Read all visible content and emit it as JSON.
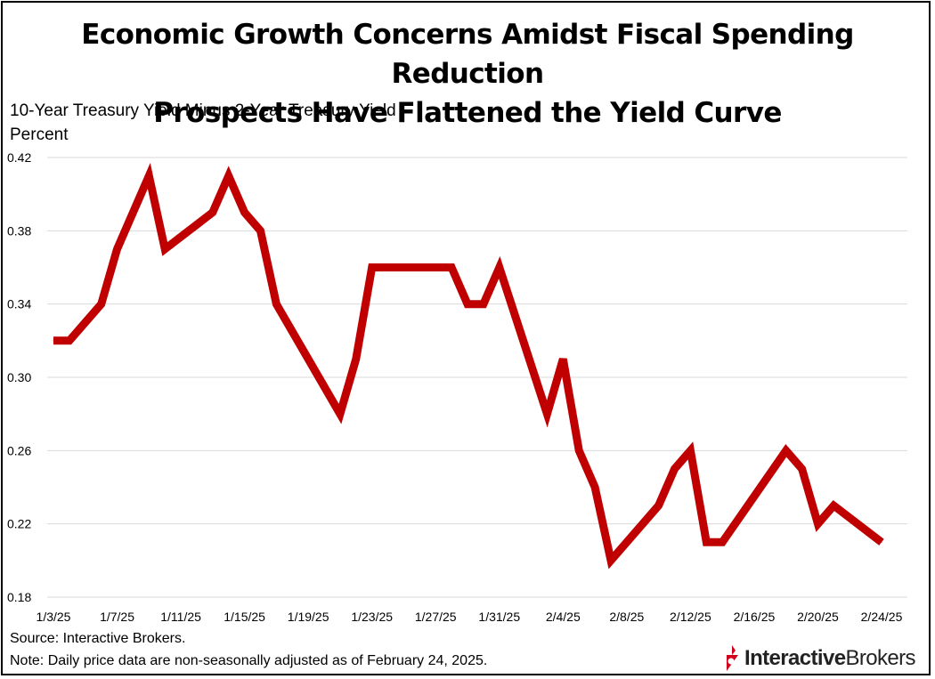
{
  "title_line1": "Economic Growth Concerns Amidst Fiscal Spending Reduction",
  "title_line2": "Prospects Have Flattened the Yield Curve",
  "footer": {
    "source": "Source: Interactive Brokers.",
    "note": "Note: Daily price data are non-seasonally adjusted as of February 24, 2025."
  },
  "logo": {
    "bold_text": "Interactive",
    "regular_text": "Brokers",
    "icon": "interactive-brokers-logo-icon",
    "color": "#d0021b"
  },
  "chart_data": {
    "type": "line",
    "title": "10-Year Treasury Yield Minus 2-Year Treasury Yield",
    "ylabel": "Percent",
    "xlabel": "",
    "ylim": [
      0.18,
      0.42
    ],
    "yticks": [
      "0.18",
      "0.22",
      "0.26",
      "0.30",
      "0.34",
      "0.38",
      "0.42"
    ],
    "xticks": [
      "1/3/25",
      "1/7/25",
      "1/11/25",
      "1/15/25",
      "1/19/25",
      "1/23/25",
      "1/27/25",
      "1/31/25",
      "2/4/25",
      "2/8/25",
      "2/12/25",
      "2/16/25",
      "2/20/25",
      "2/24/25"
    ],
    "grid": "horizontal",
    "legend": "none",
    "series": [
      {
        "color": "#c00000",
        "x": [
          "1/3/25",
          "1/4/25",
          "1/6/25",
          "1/7/25",
          "1/9/25",
          "1/10/25",
          "1/13/25",
          "1/14/25",
          "1/15/25",
          "1/16/25",
          "1/17/25",
          "1/21/25",
          "1/22/25",
          "1/23/25",
          "1/24/25",
          "1/27/25",
          "1/28/25",
          "1/29/25",
          "1/30/25",
          "1/31/25",
          "2/3/25",
          "2/4/25",
          "2/5/25",
          "2/6/25",
          "2/7/25",
          "2/10/25",
          "2/11/25",
          "2/12/25",
          "2/13/25",
          "2/14/25",
          "2/18/25",
          "2/19/25",
          "2/20/25",
          "2/21/25",
          "2/24/25"
        ],
        "values": [
          0.32,
          0.32,
          0.34,
          0.37,
          0.41,
          0.37,
          0.39,
          0.41,
          0.39,
          0.38,
          0.34,
          0.28,
          0.31,
          0.36,
          0.36,
          0.36,
          0.36,
          0.34,
          0.34,
          0.36,
          0.28,
          0.31,
          0.26,
          0.24,
          0.2,
          0.23,
          0.25,
          0.26,
          0.21,
          0.21,
          0.26,
          0.25,
          0.22,
          0.23,
          0.21
        ]
      }
    ]
  }
}
